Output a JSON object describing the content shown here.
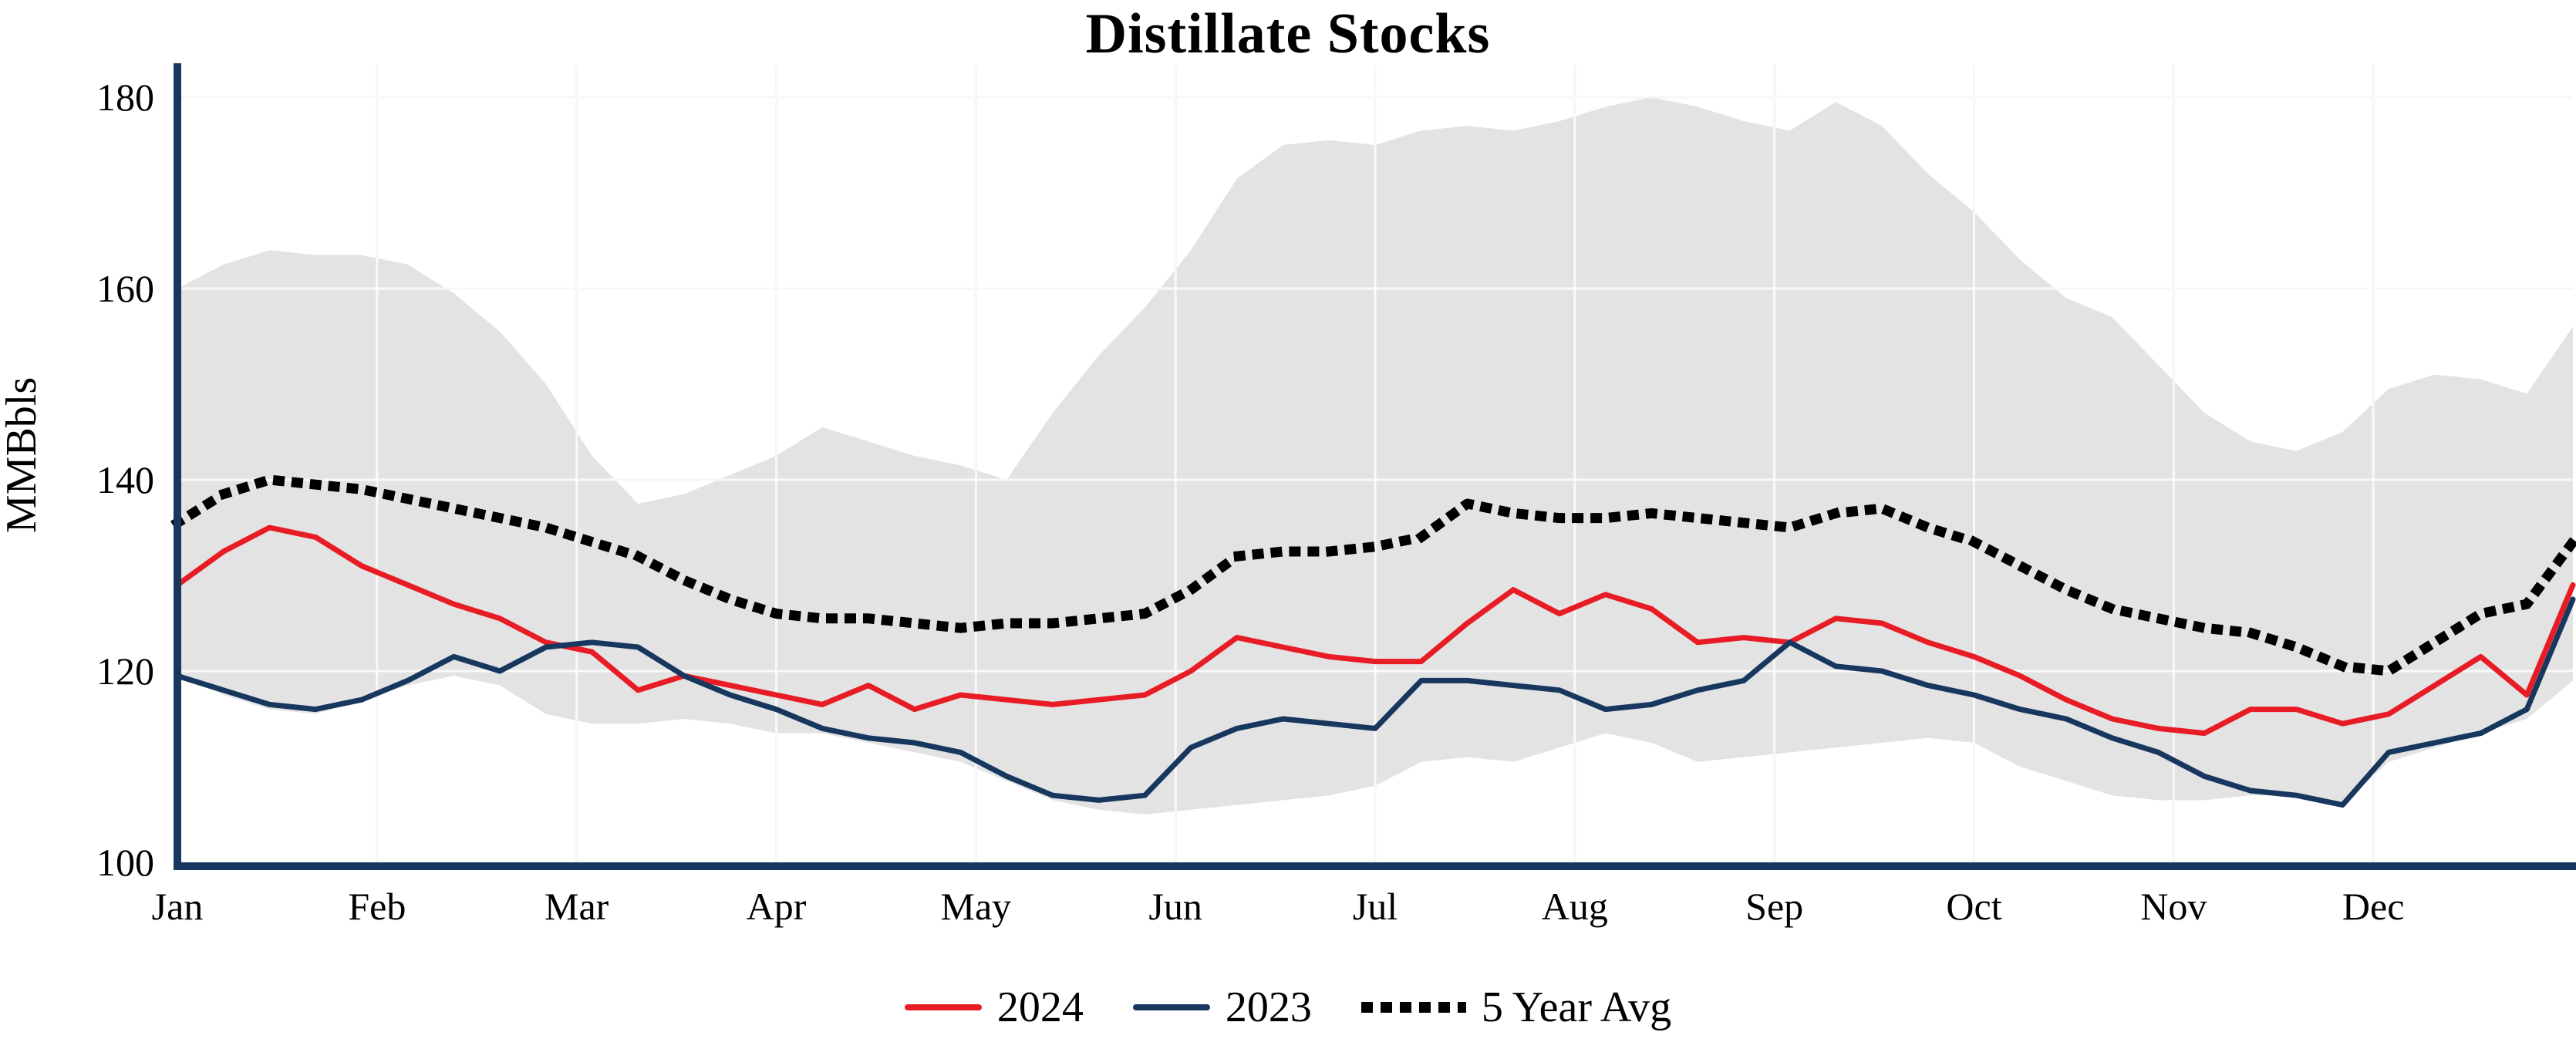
{
  "title": "Distillate Stocks",
  "chart_data": {
    "type": "line",
    "title": "Distillate Stocks",
    "ylabel": "MMBbls",
    "xlabel": "",
    "x_tick_labels": [
      "Jan",
      "Feb",
      "Mar",
      "Apr",
      "May",
      "Jun",
      "Jul",
      "Aug",
      "Sep",
      "Oct",
      "Nov",
      "Dec"
    ],
    "x_resolution": "weekly",
    "ylim": [
      100,
      180
    ],
    "yticks": [
      100,
      120,
      140,
      160,
      180
    ],
    "grid": true,
    "legend_position": "bottom",
    "colors": {
      "axis": "#17375e",
      "grid": "#d9d9d9"
    },
    "band": {
      "fill": "#e3e3e3",
      "upper": [
        160,
        162.5,
        164,
        163.5,
        163.5,
        162.5,
        159.5,
        155.5,
        150,
        142.5,
        137.5,
        138.5,
        140.5,
        142.5,
        145.5,
        144,
        142.5,
        141.5,
        140,
        147,
        153,
        158,
        164,
        171.5,
        175,
        175.5,
        175,
        176.5,
        177,
        176.5,
        177.5,
        179,
        180,
        179,
        177.5,
        176.5,
        179.5,
        177,
        172,
        168,
        163,
        159,
        157,
        152,
        147,
        144,
        143,
        145,
        149.5,
        151,
        150.5,
        149,
        156
      ],
      "lower": [
        119.5,
        117.5,
        116,
        115.5,
        117,
        118.5,
        119.5,
        118.5,
        115.5,
        114.5,
        114.5,
        115,
        114.5,
        113.5,
        113.5,
        112.5,
        111.5,
        110.5,
        108.5,
        106.5,
        105.5,
        105,
        105.5,
        106,
        106.5,
        107,
        108,
        110.5,
        111,
        110.5,
        112,
        113.5,
        112.5,
        110.5,
        111,
        111.5,
        112,
        112.5,
        113,
        112.5,
        110,
        108.5,
        107,
        106.5,
        106.5,
        107,
        107,
        106,
        110.5,
        112,
        113.5,
        115,
        119
      ]
    },
    "series": [
      {
        "name": "2024",
        "color": "#e81c24",
        "line_style": "solid",
        "values": [
          129,
          132.5,
          135,
          134,
          131,
          129,
          127,
          125.5,
          123,
          122,
          118,
          119.5,
          118.5,
          117.5,
          116.5,
          118.5,
          116,
          117.5,
          117,
          116.5,
          117,
          117.5,
          120,
          123.5,
          122.5,
          121.5,
          121,
          121,
          125,
          128.5,
          126,
          128,
          126.5,
          123,
          123.5,
          123,
          125.5,
          125,
          123,
          121.5,
          119.5,
          117,
          115,
          114,
          113.5,
          116,
          116,
          114.5,
          115.5,
          118.5,
          121.5,
          117.5,
          129
        ]
      },
      {
        "name": "2023",
        "color": "#17375e",
        "line_style": "solid",
        "values": [
          119.5,
          118,
          116.5,
          116,
          117,
          119,
          121.5,
          120,
          122.5,
          123,
          122.5,
          119.5,
          117.5,
          116,
          114,
          113,
          112.5,
          111.5,
          109,
          107,
          106.5,
          107,
          112,
          114,
          115,
          114.5,
          114,
          119,
          119,
          118.5,
          118,
          116,
          116.5,
          118,
          119,
          123,
          120.5,
          120,
          118.5,
          117.5,
          116,
          115,
          113,
          111.5,
          109,
          107.5,
          107,
          106,
          111.5,
          112.5,
          113.5,
          116,
          127.5
        ]
      },
      {
        "name": "5 Year Avg",
        "color": "#000000",
        "line_style": "dotted",
        "values": [
          135.5,
          138.5,
          140,
          139.5,
          139,
          138,
          137,
          136,
          135,
          133.5,
          132,
          129.5,
          127.5,
          126,
          125.5,
          125.5,
          125,
          124.5,
          125,
          125,
          125.5,
          126,
          128.5,
          132,
          132.5,
          132.5,
          133,
          134,
          137.5,
          136.5,
          136,
          136,
          136.5,
          136,
          135.5,
          135,
          136.5,
          137,
          135,
          133.5,
          131,
          128.5,
          126.5,
          125.5,
          124.5,
          124,
          122.5,
          120.5,
          120,
          123,
          126,
          127,
          133.5
        ]
      }
    ]
  }
}
